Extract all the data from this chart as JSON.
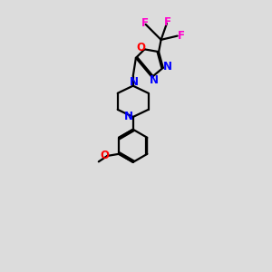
{
  "bg_color": "#dcdcdc",
  "bond_color": "#000000",
  "N_color": "#0000ff",
  "O_color": "#ff0000",
  "F_color": "#ff00cc",
  "line_width": 1.6,
  "font_size": 8.5,
  "xlim": [
    0,
    10
  ],
  "ylim": [
    0,
    14
  ]
}
